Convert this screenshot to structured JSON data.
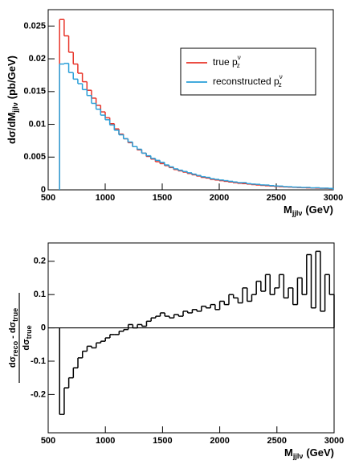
{
  "chart_data": [
    {
      "type": "histogram",
      "x_label": {
        "main": "M",
        "sub": "jjlν",
        "unit": "(GeV)"
      },
      "y_label": {
        "main": "dσ/dM",
        "sub": "jjlν",
        "unit": "(pb/GeV)"
      },
      "bins": [
        600,
        640,
        680,
        720,
        760,
        800,
        840,
        880,
        920,
        960,
        1000,
        1040,
        1080,
        1120,
        1160,
        1200,
        1240,
        1280,
        1320,
        1360,
        1400,
        1440,
        1480,
        1520,
        1560,
        1600,
        1640,
        1680,
        1720,
        1760,
        1800,
        1840,
        1880,
        1920,
        1960,
        2000,
        2040,
        2080,
        2120,
        2160,
        2200,
        2240,
        2280,
        2320,
        2360,
        2400,
        2440,
        2480,
        2520,
        2560,
        2600,
        2640,
        2680,
        2720,
        2760,
        2800,
        2840,
        2880,
        2920,
        2960,
        3000
      ],
      "series": [
        {
          "name": "true p",
          "name_sup": "ν",
          "name_sub": "z",
          "color": "#e8352a",
          "values": [
            0.026,
            0.0235,
            0.021,
            0.0192,
            0.0178,
            0.0165,
            0.0152,
            0.014,
            0.0129,
            0.0119,
            0.011,
            0.0101,
            0.0093,
            0.0085,
            0.0078,
            0.0072,
            0.0066,
            0.0061,
            0.0056,
            0.0051,
            0.0047,
            0.0043,
            0.004,
            0.0037,
            0.0034,
            0.0031,
            0.0029,
            0.0027,
            0.0025,
            0.0023,
            0.0021,
            0.0019,
            0.0018,
            0.0016,
            0.0015,
            0.0014,
            0.0013,
            0.0012,
            0.0011,
            0.001,
            0.00095,
            0.00088,
            0.0008,
            0.00074,
            0.00068,
            0.00063,
            0.00058,
            0.00053,
            0.00049,
            0.00045,
            0.00042,
            0.00039,
            0.00036,
            0.00033,
            0.0003,
            0.00028,
            0.00026,
            0.00024,
            0.00022,
            0.0002
          ]
        },
        {
          "name": "reconstructed p",
          "name_sup": "ν",
          "name_sub": "z",
          "color": "#2a9fd8",
          "values": [
            0.0192,
            0.0193,
            0.0179,
            0.0169,
            0.0162,
            0.0153,
            0.0144,
            0.0132,
            0.0123,
            0.0114,
            0.0107,
            0.0099,
            0.0091,
            0.0084,
            0.0078,
            0.0073,
            0.0066,
            0.0062,
            0.0056,
            0.0052,
            0.0048,
            0.0045,
            0.0042,
            0.0038,
            0.0035,
            0.0032,
            0.003,
            0.0028,
            0.0026,
            0.0024,
            0.0022,
            0.002,
            0.0019,
            0.0017,
            0.0016,
            0.0015,
            0.0014,
            0.0013,
            0.0012,
            0.0011,
            0.0011,
            0.00095,
            0.00088,
            0.00084,
            0.00075,
            0.00073,
            0.00064,
            0.00059,
            0.00057,
            0.00049,
            0.00047,
            0.00042,
            0.00041,
            0.00036,
            0.00037,
            0.0003,
            0.00032,
            0.00025,
            0.00026,
            0.00022
          ]
        }
      ],
      "xlim": [
        500,
        3000
      ],
      "xticks": [
        500,
        1000,
        1500,
        2000,
        2500,
        3000
      ],
      "ylim": [
        0,
        0.0275
      ],
      "yticks": [
        0,
        0.005,
        0.01,
        0.015,
        0.02,
        0.025
      ]
    },
    {
      "type": "histogram",
      "x_label": {
        "main": "M",
        "sub": "jjlν",
        "unit": "(GeV)"
      },
      "y_label": {
        "numerator": [
          "dσ",
          "reco",
          "- dσ",
          "true"
        ],
        "denominator": [
          "dσ",
          "true"
        ]
      },
      "bins": [
        600,
        640,
        680,
        720,
        760,
        800,
        840,
        880,
        920,
        960,
        1000,
        1040,
        1080,
        1120,
        1160,
        1200,
        1240,
        1280,
        1320,
        1360,
        1400,
        1440,
        1480,
        1520,
        1560,
        1600,
        1640,
        1680,
        1720,
        1760,
        1800,
        1840,
        1880,
        1920,
        1960,
        2000,
        2040,
        2080,
        2120,
        2160,
        2200,
        2240,
        2280,
        2320,
        2360,
        2400,
        2440,
        2480,
        2520,
        2560,
        2600,
        2640,
        2680,
        2720,
        2760,
        2800,
        2840,
        2880,
        2920,
        2960,
        3000
      ],
      "series": [
        {
          "color": "#000000",
          "values": [
            -0.26,
            -0.18,
            -0.15,
            -0.12,
            -0.09,
            -0.07,
            -0.055,
            -0.06,
            -0.045,
            -0.04,
            -0.03,
            -0.02,
            -0.02,
            -0.01,
            -0.005,
            0.01,
            0.0,
            0.01,
            0.005,
            0.02,
            0.03,
            0.035,
            0.045,
            0.035,
            0.03,
            0.04,
            0.035,
            0.05,
            0.045,
            0.055,
            0.05,
            0.065,
            0.06,
            0.07,
            0.055,
            0.08,
            0.07,
            0.1,
            0.09,
            0.075,
            0.12,
            0.08,
            0.1,
            0.14,
            0.11,
            0.16,
            0.1,
            0.12,
            0.16,
            0.09,
            0.12,
            0.07,
            0.15,
            0.1,
            0.22,
            0.06,
            0.23,
            0.05,
            0.16,
            0.1
          ]
        }
      ],
      "xlim": [
        500,
        3000
      ],
      "xticks": [
        500,
        1000,
        1500,
        2000,
        2500,
        3000
      ],
      "ylim": [
        -0.315,
        0.255
      ],
      "yticks": [
        -0.2,
        -0.1,
        0,
        0.1,
        0.2
      ]
    }
  ]
}
